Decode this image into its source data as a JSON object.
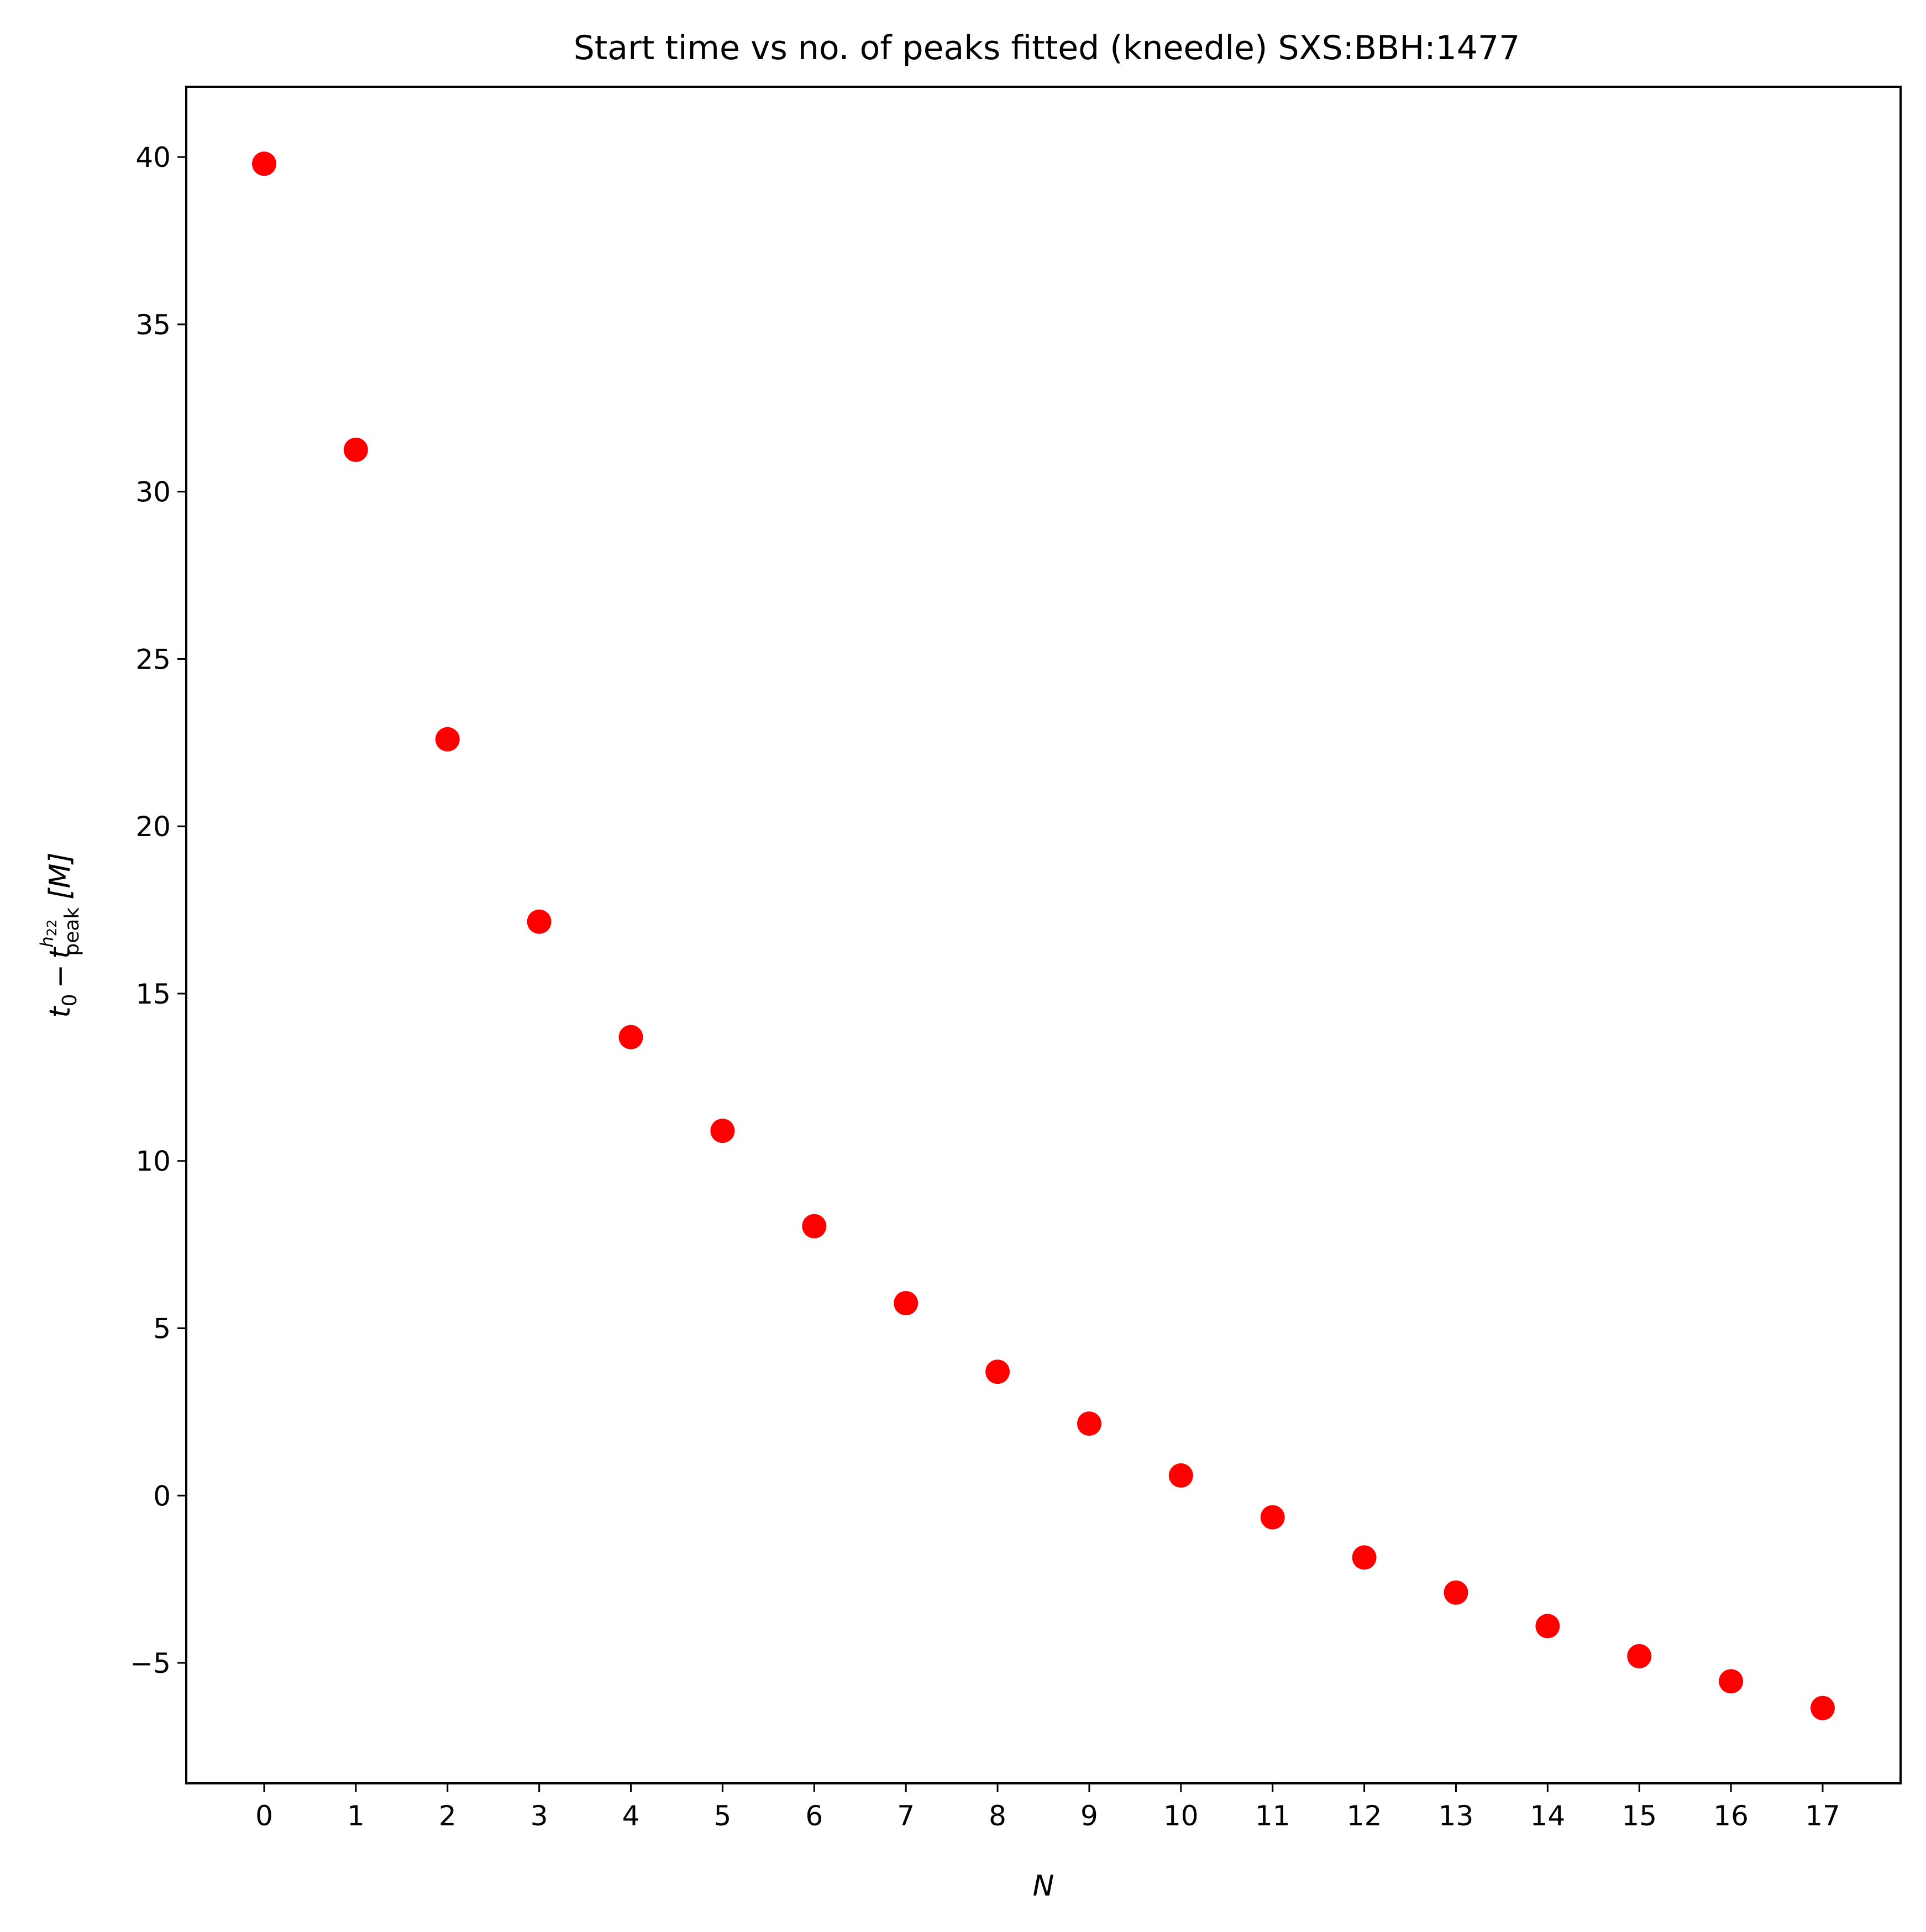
{
  "chart_data": {
    "type": "scatter",
    "title": "Start time vs no. of peaks fitted (kneedle) SXS:BBH:1477",
    "xlabel": "N",
    "ylabel": {
      "base": "t",
      "sub0": "0",
      "minus": "−",
      "t": "t",
      "sup": "h",
      "sup_sub": "22",
      "sub_peak": "peak",
      "unit": "[M]"
    },
    "x": [
      0,
      1,
      2,
      3,
      4,
      5,
      6,
      7,
      8,
      9,
      10,
      11,
      12,
      13,
      14,
      15,
      16,
      17
    ],
    "y": [
      39.8,
      31.25,
      22.6,
      17.15,
      13.7,
      10.9,
      8.05,
      5.75,
      3.7,
      2.15,
      0.6,
      -0.65,
      -1.85,
      -2.9,
      -3.9,
      -4.8,
      -5.55,
      -6.35
    ],
    "xlim": [
      -0.85,
      17.85
    ],
    "ylim": [
      -8.6,
      42.1
    ],
    "xticks": [
      0,
      1,
      2,
      3,
      4,
      5,
      6,
      7,
      8,
      9,
      10,
      11,
      12,
      13,
      14,
      15,
      16,
      17
    ],
    "yticks": [
      -5,
      0,
      5,
      10,
      15,
      20,
      25,
      30,
      35,
      40
    ],
    "ytick_labels": [
      "−5",
      "0",
      "5",
      "10",
      "15",
      "20",
      "25",
      "30",
      "35",
      "40"
    ],
    "marker_color": "#ff0000",
    "grid": false,
    "legend": "none"
  }
}
